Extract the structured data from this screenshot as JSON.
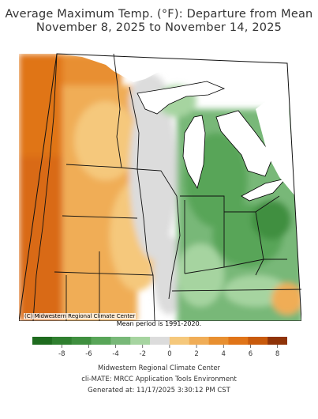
{
  "title": {
    "line1": "Average Maximum Temp. (°F): Departure from Mean",
    "line2": "November 8, 2025 to November 14, 2025"
  },
  "map": {
    "credit": "(C) Midwestern Regional Climate Center",
    "mean_period": "Mean period is 1991-2020.",
    "description_regions": [
      "warm west (+4 to +8 °F)",
      "near normal upper Mississippi valley",
      "cool Great Lakes / Ohio valley (-2 to -6 °F)"
    ]
  },
  "legend": {
    "colors": [
      "#1e6b1e",
      "#2f7f2f",
      "#3f8f3f",
      "#58a558",
      "#78b878",
      "#a6d4a0",
      "#dcdcdc",
      "#f5c87c",
      "#f0ad57",
      "#e88f30",
      "#e07418",
      "#c85a0c",
      "#8f3308"
    ],
    "ticks": [
      "-8",
      "-6",
      "-4",
      "-2",
      "0",
      "2",
      "4",
      "6",
      "8"
    ]
  },
  "footer": {
    "line1": "Midwestern Regional Climate Center",
    "line2": "cli-MATE: MRCC Application Tools Environment",
    "line3": "Generated at: 11/17/2025 3:30:12 PM CST"
  }
}
